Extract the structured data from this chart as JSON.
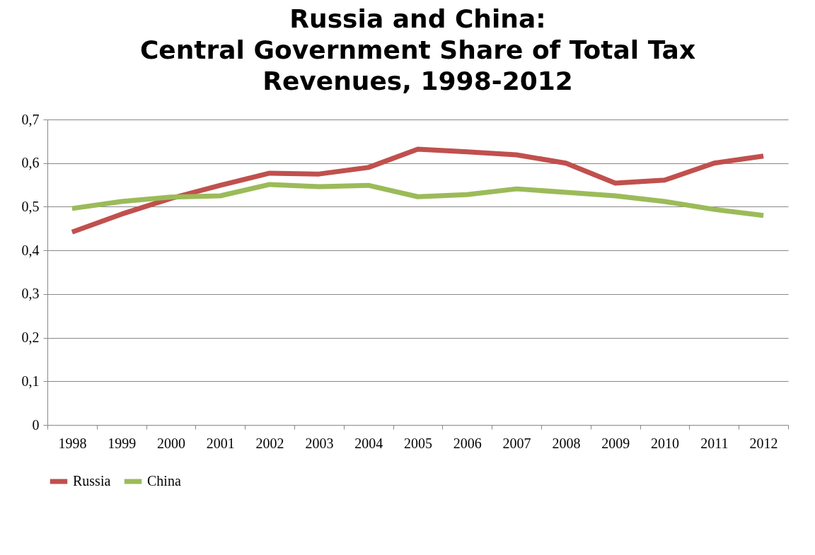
{
  "chart_data": {
    "type": "line",
    "title": "Russia and China:\nCentral Government Share of Total Tax\nRevenues, 1998-2012",
    "categories": [
      "1998",
      "1999",
      "2000",
      "2001",
      "2002",
      "2003",
      "2004",
      "2005",
      "2006",
      "2007",
      "2008",
      "2009",
      "2010",
      "2011",
      "2012"
    ],
    "series": [
      {
        "name": "Russia",
        "color": "#c0504d",
        "values": [
          0.442,
          0.483,
          0.519,
          0.549,
          0.577,
          0.575,
          0.59,
          0.632,
          0.626,
          0.619,
          0.6,
          0.554,
          0.561,
          0.6,
          0.616
        ]
      },
      {
        "name": "China",
        "color": "#9bbb59",
        "values": [
          0.496,
          0.512,
          0.522,
          0.525,
          0.551,
          0.546,
          0.549,
          0.523,
          0.528,
          0.541,
          0.533,
          0.525,
          0.512,
          0.494,
          0.48
        ]
      }
    ],
    "ylim": [
      0,
      0.7
    ],
    "yticks": [
      {
        "value": 0,
        "label": "0"
      },
      {
        "value": 0.1,
        "label": "0,1"
      },
      {
        "value": 0.2,
        "label": "0,2"
      },
      {
        "value": 0.3,
        "label": "0,3"
      },
      {
        "value": 0.4,
        "label": "0,4"
      },
      {
        "value": 0.5,
        "label": "0,5"
      },
      {
        "value": 0.6,
        "label": "0,6"
      },
      {
        "value": 0.7,
        "label": "0,7"
      }
    ],
    "grid": "y",
    "legend": "bottom",
    "marker": "none",
    "line_style": "solid"
  }
}
